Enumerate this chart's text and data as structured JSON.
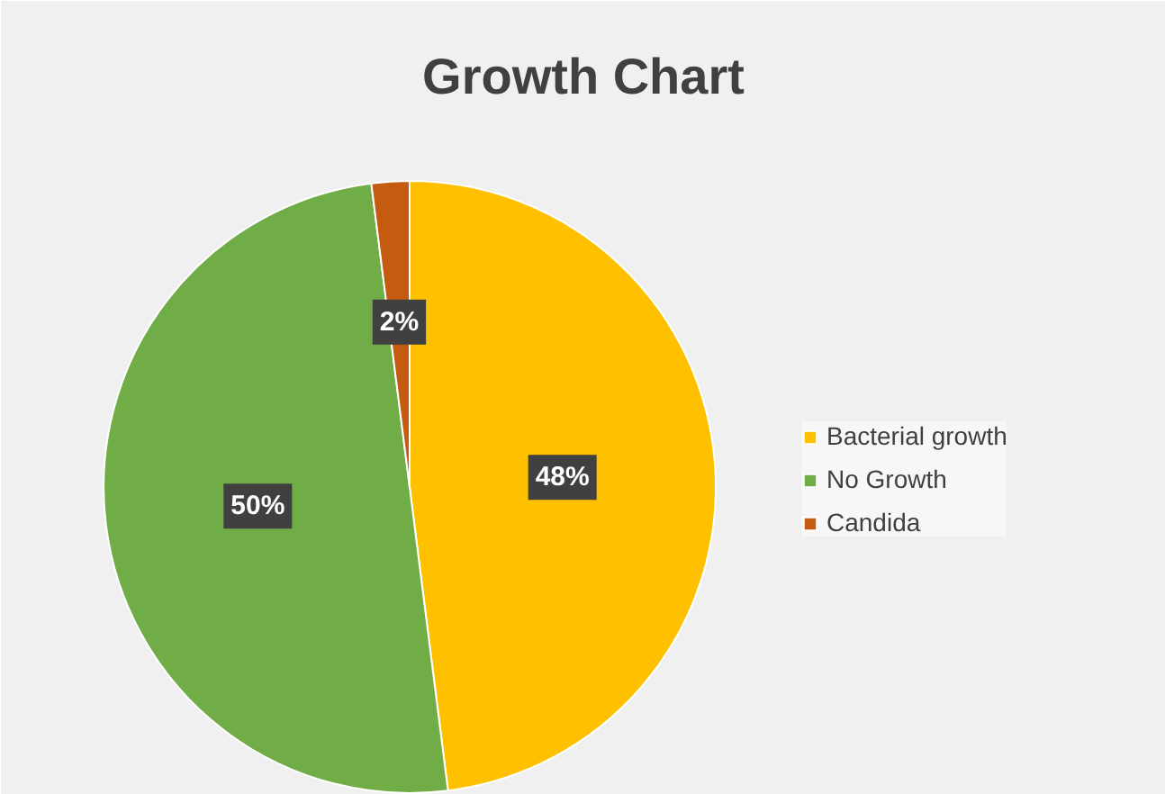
{
  "chart_data": {
    "type": "pie",
    "title": "Growth Chart",
    "categories": [
      "Bacterial growth",
      "No Growth",
      "Candida"
    ],
    "values": [
      48,
      50,
      2
    ],
    "colors": [
      "#ffc000",
      "#70ad47",
      "#c55a11"
    ],
    "value_labels": [
      "48%",
      "50%",
      "2%"
    ],
    "legend": "right"
  }
}
